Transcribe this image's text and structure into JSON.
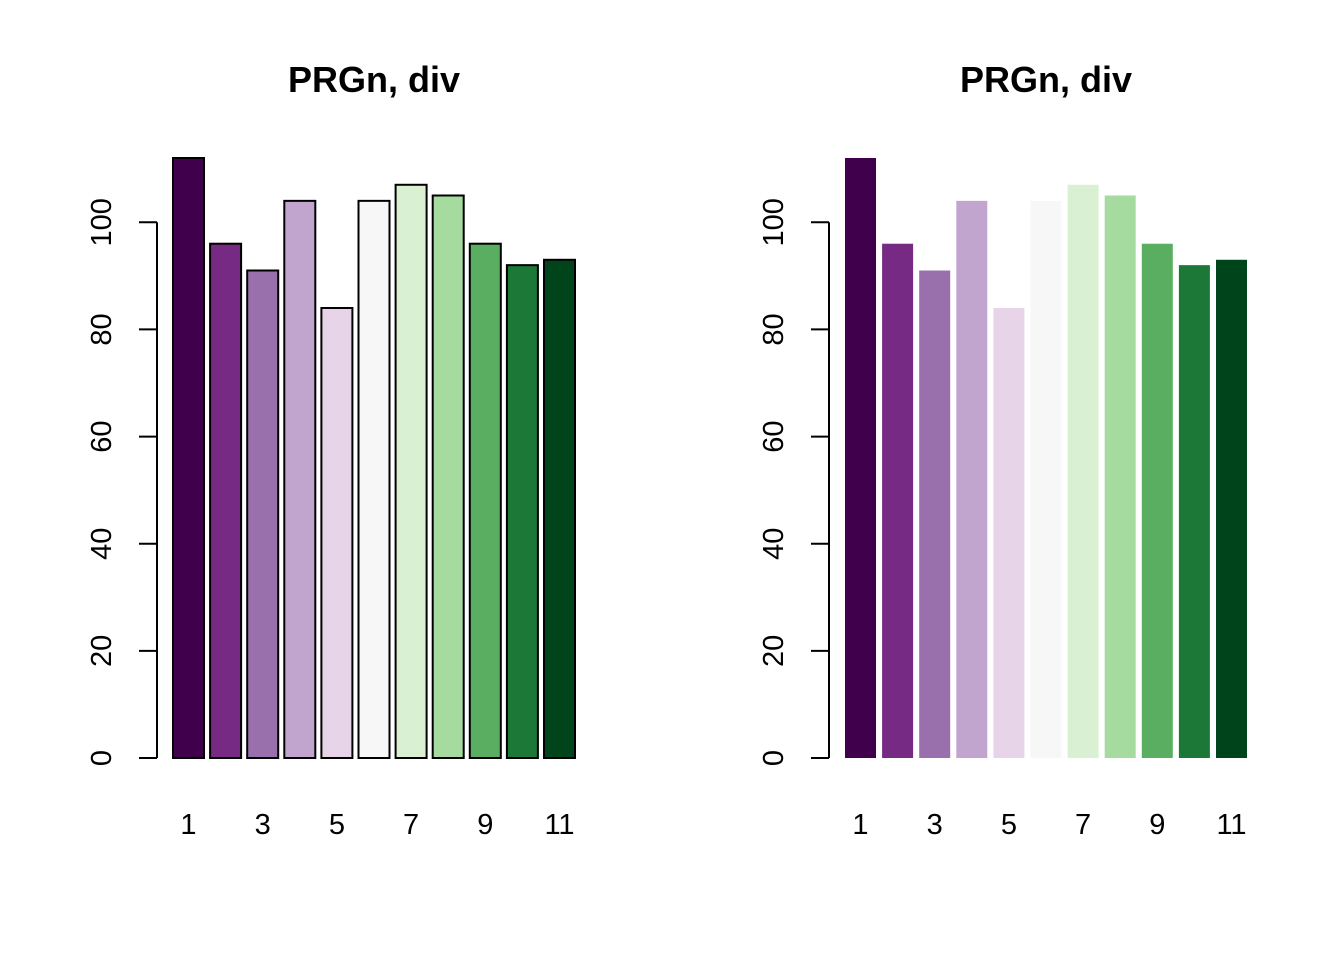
{
  "palette": [
    "#40004b",
    "#762a83",
    "#9970ab",
    "#c2a5cf",
    "#e7d4e8",
    "#f7f7f7",
    "#d9f0d3",
    "#a6dba0",
    "#5aae61",
    "#1b7837",
    "#00441b"
  ],
  "chart_data": [
    {
      "type": "bar",
      "title": "PRGn, div",
      "categories": [
        "1",
        "2",
        "3",
        "4",
        "5",
        "6",
        "7",
        "8",
        "9",
        "10",
        "11"
      ],
      "x_tick_labels": [
        "1",
        "3",
        "5",
        "7",
        "9",
        "11"
      ],
      "values": [
        112,
        96,
        91,
        104,
        84,
        104,
        107,
        105,
        96,
        92,
        93
      ],
      "ylim": [
        0,
        112
      ],
      "y_ticks": [
        0,
        20,
        40,
        60,
        80,
        100
      ],
      "y_tick_labels": [
        "0",
        "20",
        "40",
        "60",
        "80",
        "100"
      ],
      "bar_border": true,
      "grid": false
    },
    {
      "type": "bar",
      "title": "PRGn, div",
      "categories": [
        "1",
        "2",
        "3",
        "4",
        "5",
        "6",
        "7",
        "8",
        "9",
        "10",
        "11"
      ],
      "x_tick_labels": [
        "1",
        "3",
        "5",
        "7",
        "9",
        "11"
      ],
      "values": [
        112,
        96,
        91,
        104,
        84,
        104,
        107,
        105,
        96,
        92,
        93
      ],
      "ylim": [
        0,
        112
      ],
      "y_ticks": [
        0,
        20,
        40,
        60,
        80,
        100
      ],
      "y_tick_labels": [
        "0",
        "20",
        "40",
        "60",
        "80",
        "100"
      ],
      "bar_border": false,
      "grid": false
    }
  ]
}
